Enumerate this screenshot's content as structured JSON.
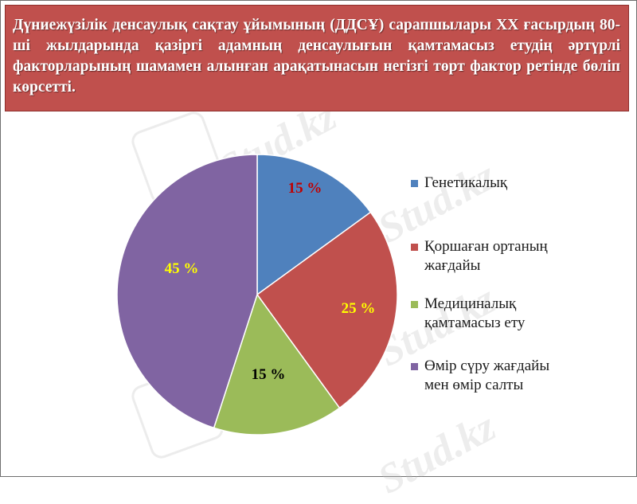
{
  "header": {
    "text": "Дүниежүзілік денсаулық сақтау ұйымының (ДДСҰ) сарапшылары ХХ ғасырдың 80-ші жылдарында қазіргі адамның денсаулығын қамтамасыз етудің әртүрлі факторларының шамамен алынған арақатынасын негізгі төрт фактор ретінде бөліп көрсетті."
  },
  "watermark": {
    "text": "Stud.kz"
  },
  "chart_data": {
    "type": "pie",
    "title": "",
    "slices": [
      {
        "label": "Генетикалық",
        "value": 15,
        "data_label": "15 %",
        "color": "#4f81bd",
        "label_color": "#c00000"
      },
      {
        "label": "Қоршаған ортаның жағдайы",
        "value": 25,
        "data_label": "25 %",
        "color": "#c0504d",
        "label_color": "#ffff00"
      },
      {
        "label": "Медициналық қамтамасыз ету",
        "value": 15,
        "data_label": "15 %",
        "color": "#9bbb59",
        "label_color": "#000000"
      },
      {
        "label": "Өмір сүру жағдайы мен өмір салты",
        "value": 45,
        "data_label": "45 %",
        "color": "#8064a2",
        "label_color": "#ffff00"
      }
    ],
    "legend_position": "right"
  }
}
